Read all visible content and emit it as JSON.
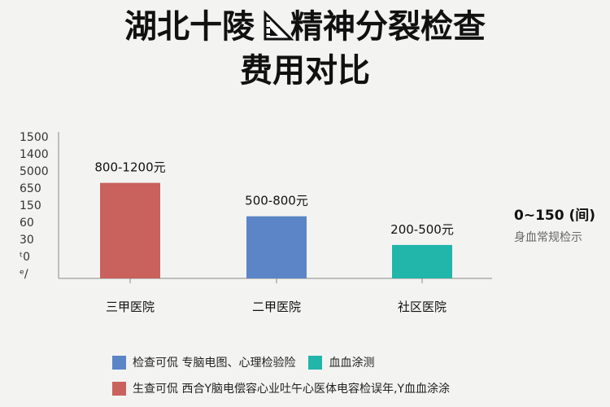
{
  "title": {
    "line1_pre": "湖北十陵",
    "line1_post": "精神分裂检查",
    "line2": "费用对比"
  },
  "side_note": {
    "main": "0~150 (间)",
    "sub": "身血常规检示"
  },
  "legend": [
    {
      "items": [
        {
          "color": "#5b85c6",
          "text": "检查可侃  专脑电图、心理检验险"
        },
        {
          "color": "#22b5aa",
          "text": "血血涂测"
        }
      ]
    },
    {
      "items": [
        {
          "color": "#c9615c",
          "text": "生查可侃  西合Y脑电偿容心业吐午心医体电容检误年,Y血血涂涂"
        }
      ]
    }
  ],
  "chart_data": {
    "type": "bar",
    "title": "湖北十陵精神分裂检查费用对比",
    "categories": [
      "三甲医院",
      "二甲医院",
      "社区医院"
    ],
    "values": [
      1000,
      650,
      350
    ],
    "value_labels": [
      "800-1200元",
      "500-800元",
      "200-500元"
    ],
    "colors": [
      "#c9615c",
      "#5b85c6",
      "#22b5aa"
    ],
    "y_tick_labels": [
      "1500",
      "1400",
      "5000",
      "650",
      "150",
      "60",
      "30",
      "ᵗ0",
      "ᵉ/"
    ],
    "ylim": [
      0,
      1500
    ],
    "xlabel": "",
    "ylabel": "",
    "grid": false
  }
}
